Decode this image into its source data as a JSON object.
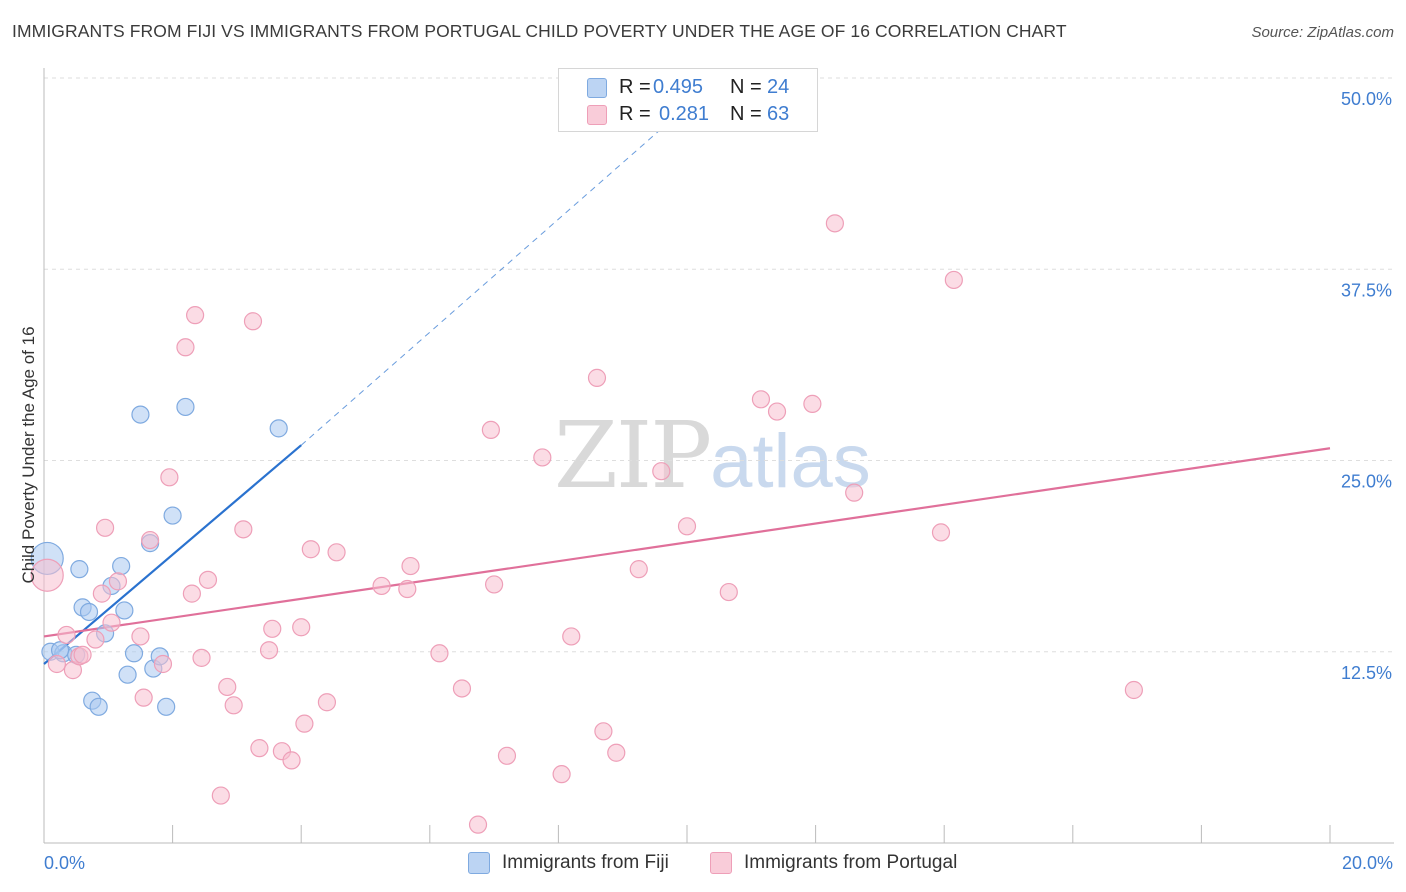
{
  "title": "IMMIGRANTS FROM FIJI VS IMMIGRANTS FROM PORTUGAL CHILD POVERTY UNDER THE AGE OF 16 CORRELATION CHART",
  "source": "Source: ZipAtlas.com",
  "watermark": {
    "zip": "ZIP",
    "atlas": "atlas"
  },
  "legend": {
    "fiji": {
      "r_label": "R = ",
      "r_value": "0.495",
      "n_label": "N = ",
      "n_value": "24"
    },
    "portugal": {
      "r_label": "R = ",
      "r_value": "0.281",
      "n_label": "N = ",
      "n_value": "63"
    }
  },
  "bottom_legend": {
    "fiji": "Immigrants from Fiji",
    "portugal": "Immigrants from Portugal"
  },
  "colors": {
    "fiji_fill": "#a9c8f0",
    "fiji_stroke": "#7faae0",
    "fiji_line": "#2a72cf",
    "portugal_fill": "#f7c0d0",
    "portugal_stroke": "#ee9fb8",
    "portugal_line": "#e0709a",
    "tick_label": "#3f7dd0",
    "grid": "#dedede"
  },
  "chart_data": {
    "type": "scatter",
    "xlabel": "",
    "ylabel": "Child Poverty Under the Age of 16",
    "xlim": [
      0,
      20
    ],
    "ylim": [
      0,
      50
    ],
    "x_tick_labels": [
      "0.0%",
      "20.0%"
    ],
    "y_tick_labels": [
      "12.5%",
      "25.0%",
      "37.5%",
      "50.0%"
    ],
    "y_ticks": [
      12.5,
      25.0,
      37.5,
      50.0
    ],
    "grid": true,
    "legend_position": "top-center",
    "series": [
      {
        "name": "Immigrants from Fiji",
        "points": [
          [
            0.05,
            18.6,
            "large"
          ],
          [
            0.1,
            12.5
          ],
          [
            0.3,
            12.4
          ],
          [
            0.5,
            12.3
          ],
          [
            0.55,
            17.9
          ],
          [
            0.6,
            15.4
          ],
          [
            0.7,
            15.1
          ],
          [
            0.75,
            9.3
          ],
          [
            0.85,
            8.9
          ],
          [
            0.95,
            13.7
          ],
          [
            1.05,
            16.8
          ],
          [
            1.2,
            18.1
          ],
          [
            1.25,
            15.2
          ],
          [
            1.3,
            11.0
          ],
          [
            1.4,
            12.4
          ],
          [
            1.5,
            28.0
          ],
          [
            1.65,
            19.6
          ],
          [
            1.7,
            11.4
          ],
          [
            1.8,
            12.2
          ],
          [
            1.9,
            8.9
          ],
          [
            2.0,
            21.4
          ],
          [
            2.2,
            28.5
          ],
          [
            3.65,
            27.1
          ],
          [
            0.25,
            12.6
          ]
        ],
        "trend": {
          "x1": 0.0,
          "y1": 11.7,
          "x2": 4.0,
          "y2": 26.0,
          "dash_to_x": 10.5,
          "dash_to_y": 50.0
        }
      },
      {
        "name": "Immigrants from Portugal",
        "points": [
          [
            0.05,
            17.5,
            "large"
          ],
          [
            0.2,
            11.7
          ],
          [
            0.35,
            13.6
          ],
          [
            0.45,
            11.3
          ],
          [
            0.55,
            12.2
          ],
          [
            0.8,
            13.3
          ],
          [
            0.9,
            16.3
          ],
          [
            0.95,
            20.6
          ],
          [
            1.05,
            14.4
          ],
          [
            1.15,
            17.1
          ],
          [
            1.5,
            13.5
          ],
          [
            1.55,
            9.5
          ],
          [
            1.65,
            19.8
          ],
          [
            1.85,
            11.7
          ],
          [
            1.95,
            23.9
          ],
          [
            2.2,
            32.4
          ],
          [
            2.3,
            16.3
          ],
          [
            2.35,
            34.5
          ],
          [
            2.45,
            12.1
          ],
          [
            2.55,
            17.2
          ],
          [
            2.75,
            3.1
          ],
          [
            2.85,
            10.2
          ],
          [
            2.95,
            9.0
          ],
          [
            3.1,
            20.5
          ],
          [
            3.25,
            34.1
          ],
          [
            3.35,
            6.2
          ],
          [
            3.5,
            12.6
          ],
          [
            3.55,
            14.0
          ],
          [
            3.7,
            6.0
          ],
          [
            3.85,
            5.4
          ],
          [
            4.0,
            14.1
          ],
          [
            4.05,
            7.8
          ],
          [
            4.15,
            19.2
          ],
          [
            4.4,
            9.2
          ],
          [
            4.55,
            19.0
          ],
          [
            5.25,
            16.8
          ],
          [
            5.65,
            16.6
          ],
          [
            5.7,
            18.1
          ],
          [
            6.15,
            12.4
          ],
          [
            6.5,
            10.1
          ],
          [
            6.75,
            1.2
          ],
          [
            6.95,
            27.0
          ],
          [
            7.0,
            16.9
          ],
          [
            7.2,
            5.7
          ],
          [
            7.75,
            25.2
          ],
          [
            8.05,
            4.5
          ],
          [
            8.2,
            13.5
          ],
          [
            8.6,
            30.4
          ],
          [
            8.7,
            7.3
          ],
          [
            8.9,
            5.9
          ],
          [
            9.25,
            17.9
          ],
          [
            9.6,
            24.3
          ],
          [
            10.0,
            20.7
          ],
          [
            10.65,
            16.4
          ],
          [
            11.15,
            29.0
          ],
          [
            11.4,
            28.2
          ],
          [
            11.95,
            28.7
          ],
          [
            12.3,
            40.5
          ],
          [
            12.6,
            22.9
          ],
          [
            13.95,
            20.3
          ],
          [
            14.15,
            36.8
          ],
          [
            16.95,
            10.0
          ],
          [
            0.6,
            12.3
          ]
        ],
        "trend": {
          "x1": 0.0,
          "y1": 13.5,
          "x2": 20.0,
          "y2": 25.8
        }
      }
    ]
  }
}
